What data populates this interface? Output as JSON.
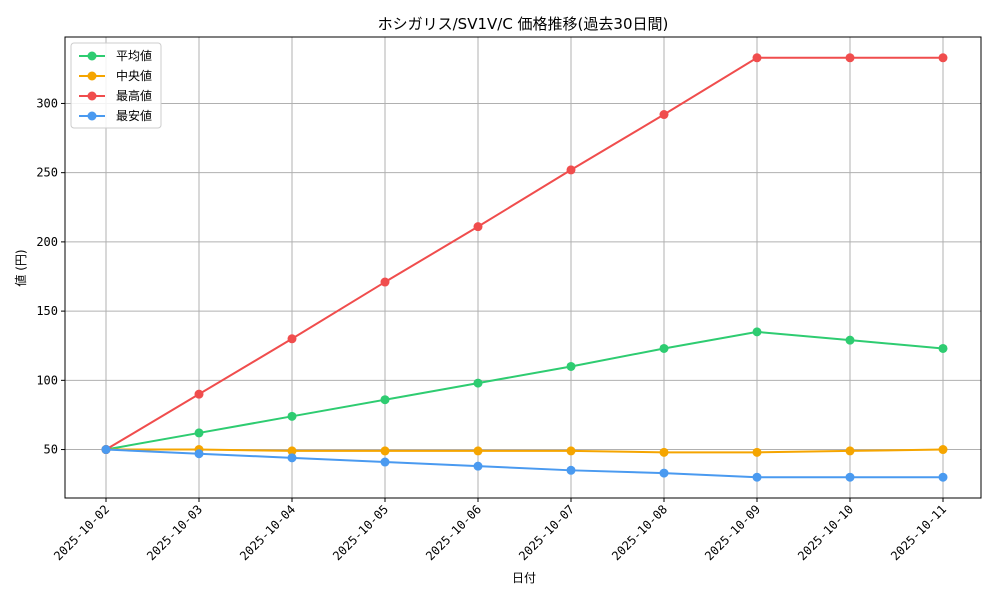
{
  "chart_data": {
    "type": "line",
    "title": "ホシガリス/SV1V/C 価格推移(過去30日間)",
    "xlabel": "日付",
    "ylabel": "値 (円)",
    "categories": [
      "2025-10-02",
      "2025-10-03",
      "2025-10-04",
      "2025-10-05",
      "2025-10-06",
      "2025-10-07",
      "2025-10-08",
      "2025-10-09",
      "2025-10-10",
      "2025-10-11"
    ],
    "ylim": [
      15,
      348
    ],
    "yticks": [
      50,
      100,
      150,
      200,
      250,
      300
    ],
    "grid": true,
    "legend_position": "top-left",
    "series": [
      {
        "name": "平均値",
        "color": "#2ecc71",
        "values": [
          50,
          62,
          74,
          86,
          98,
          110,
          123,
          135,
          129,
          123
        ]
      },
      {
        "name": "中央値",
        "color": "#f5a500",
        "values": [
          50,
          50,
          49,
          49,
          49,
          49,
          48,
          48,
          49,
          50
        ]
      },
      {
        "name": "最高値",
        "color": "#f04d4d",
        "values": [
          50,
          90,
          130,
          171,
          211,
          252,
          292,
          333,
          333,
          333
        ]
      },
      {
        "name": "最安値",
        "color": "#4a9af0",
        "values": [
          50,
          47,
          44,
          41,
          38,
          35,
          33,
          30,
          30,
          30
        ]
      }
    ]
  }
}
